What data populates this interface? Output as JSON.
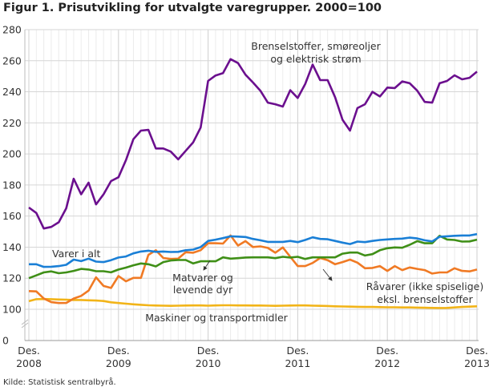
{
  "chart_data": {
    "type": "line",
    "title": "Figur 1. Prisutvikling for utvalgte varegrupper. 2000=100",
    "xlabel": "",
    "ylabel": "",
    "x_ticks": [
      {
        "line1": "Des.",
        "line2": "2008"
      },
      {
        "line1": "Des.",
        "line2": "2009"
      },
      {
        "line1": "Des.",
        "line2": "2010"
      },
      {
        "line1": "Des.",
        "line2": "2011"
      },
      {
        "line1": "Des.",
        "line2": "2012"
      },
      {
        "line1": "Des.",
        "line2": "2013"
      }
    ],
    "x_range": [
      "Des. 2008",
      "Des. 2013"
    ],
    "x_frequency": "monthly",
    "y_ticks": [
      "0",
      "100",
      "120",
      "140",
      "160",
      "180",
      "200",
      "220",
      "240",
      "260",
      "280"
    ],
    "ylim": [
      0,
      280
    ],
    "y_axis_break": [
      0,
      100
    ],
    "grid": true,
    "legend": "none (inline labels)",
    "series": [
      {
        "name": "Brenselstoffer, smøreoljer og elektrisk strøm",
        "label_lines": [
          "Brenselstoffer, smøreoljer",
          "og elektrisk strøm"
        ],
        "color": "#6b0f8e",
        "values": [
          165.5,
          162,
          152,
          153,
          156,
          165,
          184,
          174,
          181.5,
          167.5,
          174,
          182.5,
          185,
          196,
          209.5,
          215,
          215.5,
          203.5,
          203.5,
          201.5,
          196.5,
          202,
          207.5,
          217,
          247,
          250.5,
          252,
          261,
          258.5,
          251,
          246,
          240.7,
          233,
          232,
          230.5,
          241,
          236,
          245,
          257.5,
          247.5,
          247.5,
          236.5,
          222,
          215,
          229.5,
          232,
          240,
          237,
          242.7,
          242.4,
          246.7,
          245.5,
          240.7,
          233.5,
          233,
          245.5,
          247,
          250.6,
          248,
          249,
          253
        ]
      },
      {
        "name": "Varer i alt",
        "label_lines": [
          "Varer i alt"
        ],
        "color": "#1a7fd6",
        "values": [
          129,
          129,
          127.3,
          127.4,
          127.8,
          128.6,
          132,
          131,
          132.6,
          130.7,
          130.4,
          131.6,
          133.3,
          134,
          136,
          137.2,
          137.7,
          137,
          137.2,
          136.9,
          137,
          138,
          138.4,
          140,
          144,
          144.8,
          145.8,
          147,
          146.8,
          146.5,
          145.3,
          144.4,
          143.4,
          143.4,
          143.4,
          144,
          143.2,
          144.6,
          146.3,
          145.3,
          145.1,
          144,
          142.9,
          142,
          143.6,
          143.2,
          144,
          144.6,
          145,
          145.3,
          145.5,
          146.1,
          145.6,
          144.4,
          143.7,
          146.7,
          147,
          147.3,
          147.5,
          147.5,
          148.4
        ]
      },
      {
        "name": "Matvarer og levende dyr",
        "label_lines": [
          "Matvarer og",
          "levende dyr"
        ],
        "color": "#3f8f17",
        "values": [
          120,
          121.8,
          123.7,
          124.4,
          123.2,
          123.7,
          124.7,
          126,
          125.6,
          124.5,
          124.5,
          123.8,
          125.6,
          126.8,
          128.3,
          129.5,
          129,
          127.6,
          130.4,
          131.4,
          131.7,
          131.7,
          129.5,
          130.9,
          130.9,
          130.9,
          133.4,
          132.6,
          132.9,
          133.3,
          133.4,
          133.4,
          133.4,
          132.9,
          133.8,
          133.3,
          133.8,
          132.4,
          133.4,
          133.4,
          133.4,
          133.4,
          135.8,
          136.5,
          136.5,
          134.6,
          135.5,
          138,
          139.3,
          139.8,
          139.6,
          141.5,
          143.9,
          142.5,
          142.5,
          147.3,
          144.9,
          144.6,
          143.6,
          143.7,
          144.8
        ]
      },
      {
        "name": "Råvarer (ikke spiselige) eksl. brenselstoffer",
        "label_lines": [
          "Råvarer (ikke spiselige)",
          "eksl. brenselstoffer"
        ],
        "color": "#f07a24",
        "values": [
          111.7,
          111.5,
          106.9,
          104.6,
          104,
          104.1,
          106.9,
          108.6,
          112,
          120.6,
          115,
          113.7,
          121.4,
          118,
          120.2,
          120.2,
          135,
          138,
          133,
          132.4,
          132.6,
          136.7,
          136.4,
          138,
          142.5,
          142.5,
          142.3,
          147.5,
          141,
          143.9,
          140.1,
          140.5,
          139.5,
          136.4,
          139.8,
          133.8,
          127.8,
          127.8,
          129.8,
          133,
          131.6,
          129,
          130.4,
          132,
          130,
          126.4,
          126.6,
          127.8,
          124.7,
          127.8,
          125.2,
          126.9,
          126,
          125.2,
          123,
          123.7,
          123.7,
          126.4,
          124.7,
          124.4,
          125.6
        ]
      },
      {
        "name": "Maskiner og transportmidler",
        "label_lines": [
          "Maskiner og transportmidler"
        ],
        "color": "#f2b418",
        "values": [
          105.2,
          106.5,
          106.6,
          106.5,
          106.3,
          106.2,
          106,
          106,
          105.8,
          105.6,
          105.3,
          104.5,
          104,
          103.6,
          103.2,
          102.9,
          102.6,
          102.4,
          102.3,
          102.2,
          102.3,
          102.4,
          102.5,
          102.5,
          102.3,
          102.5,
          102.6,
          102.6,
          102.5,
          102.5,
          102.4,
          102.4,
          102.3,
          102.2,
          102.3,
          102.4,
          102.5,
          102.5,
          102.3,
          102.2,
          102.1,
          101.9,
          101.8,
          101.7,
          101.6,
          101.5,
          101.5,
          101.4,
          101.3,
          101.3,
          101.2,
          101.2,
          101.1,
          101,
          100.9,
          100.8,
          100.9,
          101.2,
          101.5,
          101.7,
          101.9
        ]
      }
    ]
  },
  "source": "Kilde: Statistisk sentralbyrå."
}
